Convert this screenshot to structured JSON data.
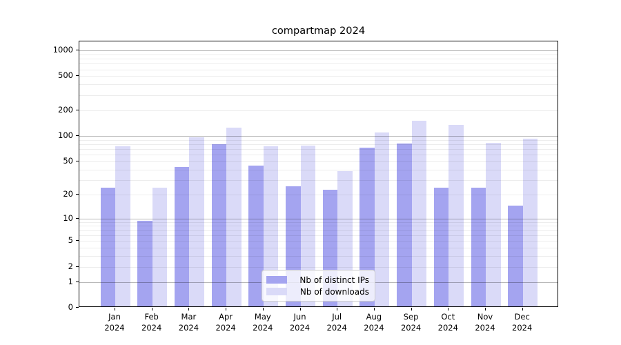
{
  "chart_data": {
    "type": "bar",
    "title": "compartmap 2024",
    "categories": [
      "Jan 2024",
      "Feb 2024",
      "Mar 2024",
      "Apr 2024",
      "May 2024",
      "Jun 2024",
      "Jul 2024",
      "Aug 2024",
      "Sep 2024",
      "Oct 2024",
      "Nov 2024",
      "Dec 2024"
    ],
    "series": [
      {
        "name": "Nb of distinct IPs",
        "color": "#a4a4f0",
        "values": [
          23,
          9,
          41,
          77,
          43,
          24,
          22,
          70,
          78,
          23,
          23,
          14
        ]
      },
      {
        "name": "Nb of downloads",
        "color": "#dadaf8",
        "values": [
          73,
          23,
          92,
          120,
          73,
          74,
          37,
          105,
          145,
          130,
          80,
          89
        ]
      }
    ],
    "xlabel": "",
    "ylabel": "",
    "yscale": "log1p",
    "yticks": [
      0,
      1,
      2,
      5,
      10,
      20,
      50,
      100,
      200,
      500,
      1000
    ],
    "major_yticks": [
      1,
      10,
      100,
      1000
    ],
    "ylim": [
      0,
      1270
    ],
    "grid": true,
    "legend_position": "lower center"
  }
}
